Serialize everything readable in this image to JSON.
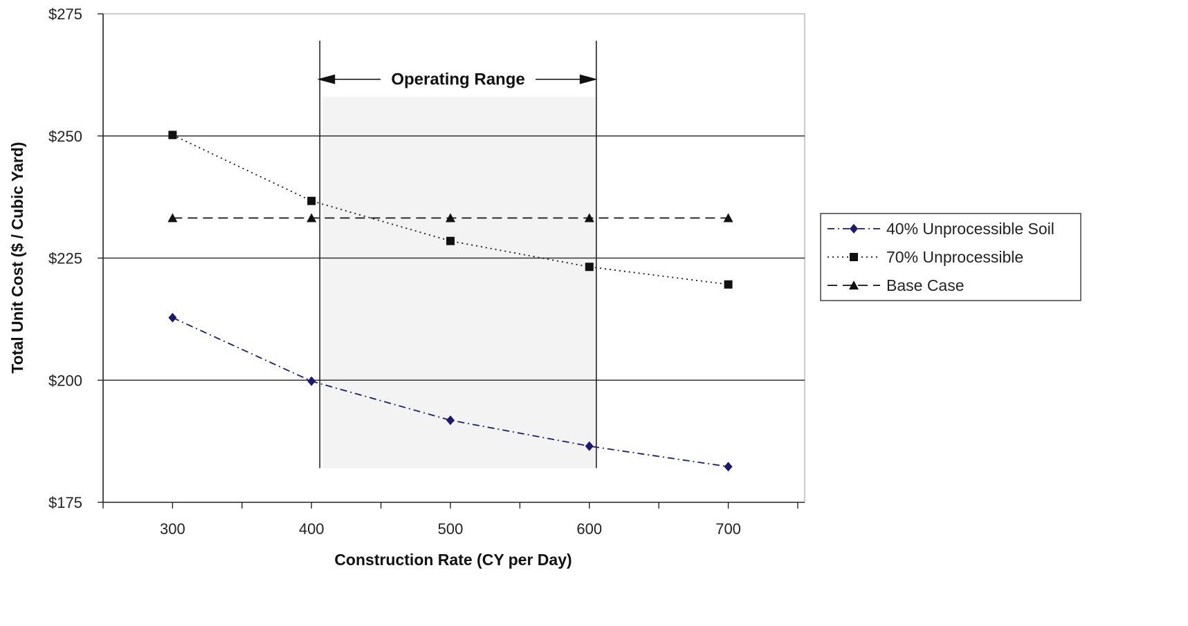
{
  "chart_data": {
    "type": "line",
    "xlabel": "Construction Rate (CY per Day)",
    "ylabel": "Total Unit Cost ($ / Cubic Yard)",
    "xlim": [
      250,
      755
    ],
    "ylim": [
      175,
      275
    ],
    "x_ticks": [
      300,
      400,
      500,
      600,
      700
    ],
    "x_tick_labels": [
      "300",
      "400",
      "500",
      "600",
      "700"
    ],
    "y_ticks": [
      175,
      200,
      225,
      250,
      275
    ],
    "y_tick_labels": [
      "$175",
      "$200",
      "$225",
      "$250",
      "$275"
    ],
    "grid": "horizontal",
    "legend_position": "right",
    "series": [
      {
        "name": "40% Unprocessible Soil",
        "marker": "diamond",
        "line_style": "dash-dot",
        "color": "#1a1a6e",
        "x": [
          300,
          400,
          500,
          600,
          700
        ],
        "values": [
          212.8,
          199.8,
          191.8,
          186.5,
          182.3
        ]
      },
      {
        "name": "70% Unprocessible",
        "marker": "square",
        "line_style": "dotted",
        "color": "#111111",
        "x": [
          300,
          400,
          500,
          600,
          700
        ],
        "values": [
          250.2,
          236.7,
          228.5,
          223.2,
          219.6
        ]
      },
      {
        "name": "Base Case",
        "marker": "triangle",
        "line_style": "dashed",
        "color": "#111111",
        "x": [
          300,
          400,
          500,
          600,
          700
        ],
        "values": [
          233.2,
          233.2,
          233.2,
          233.2,
          233.2
        ]
      }
    ],
    "annotation": {
      "label": "Operating Range",
      "x_start": 408,
      "x_end": 605,
      "y_bottom": 182,
      "y_top": 258
    }
  }
}
